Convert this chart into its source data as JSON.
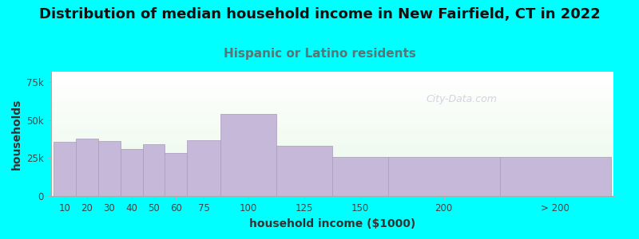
{
  "title": "Distribution of median household income in New Fairfield, CT in 2022",
  "subtitle": "Hispanic or Latino residents",
  "xlabel": "household income ($1000)",
  "ylabel": "households",
  "background_color": "#00FFFF",
  "bar_color": "#c5b8d8",
  "bar_edge_color": "#a89abb",
  "categories": [
    "10",
    "20",
    "30",
    "40",
    "50",
    "60",
    "75",
    "100",
    "125",
    "150",
    "200",
    "> 200"
  ],
  "values": [
    36000,
    38000,
    36500,
    31000,
    34000,
    28500,
    37000,
    54000,
    33000,
    25500,
    26000,
    25500
  ],
  "range_widths": [
    10,
    10,
    10,
    10,
    10,
    10,
    15,
    25,
    25,
    25,
    50,
    50
  ],
  "yticks": [
    0,
    25000,
    50000,
    75000
  ],
  "ytick_labels": [
    "0",
    "25k",
    "50k",
    "75k"
  ],
  "ylim": [
    0,
    82000
  ],
  "title_fontsize": 13,
  "subtitle_fontsize": 11,
  "subtitle_color": "#557777",
  "axis_label_fontsize": 10,
  "tick_fontsize": 8.5,
  "watermark_text": "City-Data.com",
  "watermark_color": "#bbbbcc"
}
